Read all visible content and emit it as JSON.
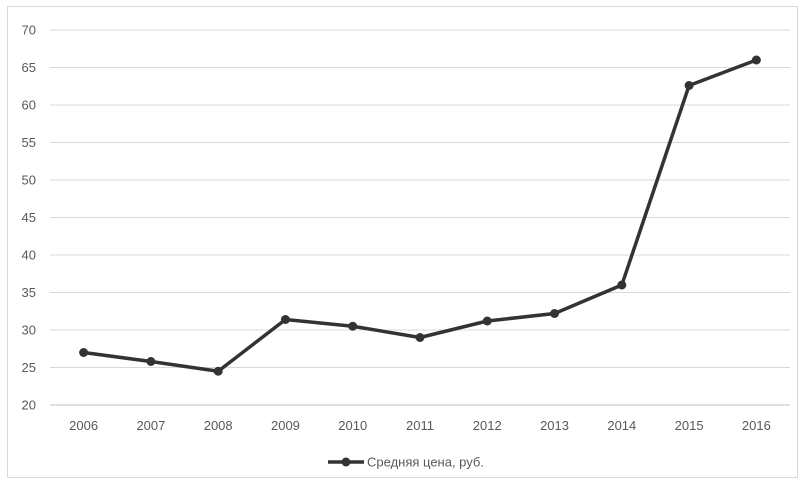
{
  "chart_data": {
    "type": "line",
    "title": "",
    "xlabel": "",
    "ylabel": "",
    "categories": [
      "2006",
      "2007",
      "2008",
      "2009",
      "2010",
      "2011",
      "2012",
      "2013",
      "2014",
      "2015",
      "2016"
    ],
    "series": [
      {
        "name": "Средняя цена, руб.",
        "values": [
          27.0,
          25.8,
          24.5,
          31.4,
          30.5,
          29.0,
          31.2,
          32.2,
          36.0,
          62.6,
          66.0
        ],
        "color": "#333333"
      }
    ],
    "ylim": [
      20,
      70
    ],
    "yticks": [
      "20",
      "25",
      "30",
      "35",
      "40",
      "45",
      "50",
      "55",
      "60",
      "65",
      "70"
    ],
    "grid": true,
    "legend_position": "bottom"
  }
}
